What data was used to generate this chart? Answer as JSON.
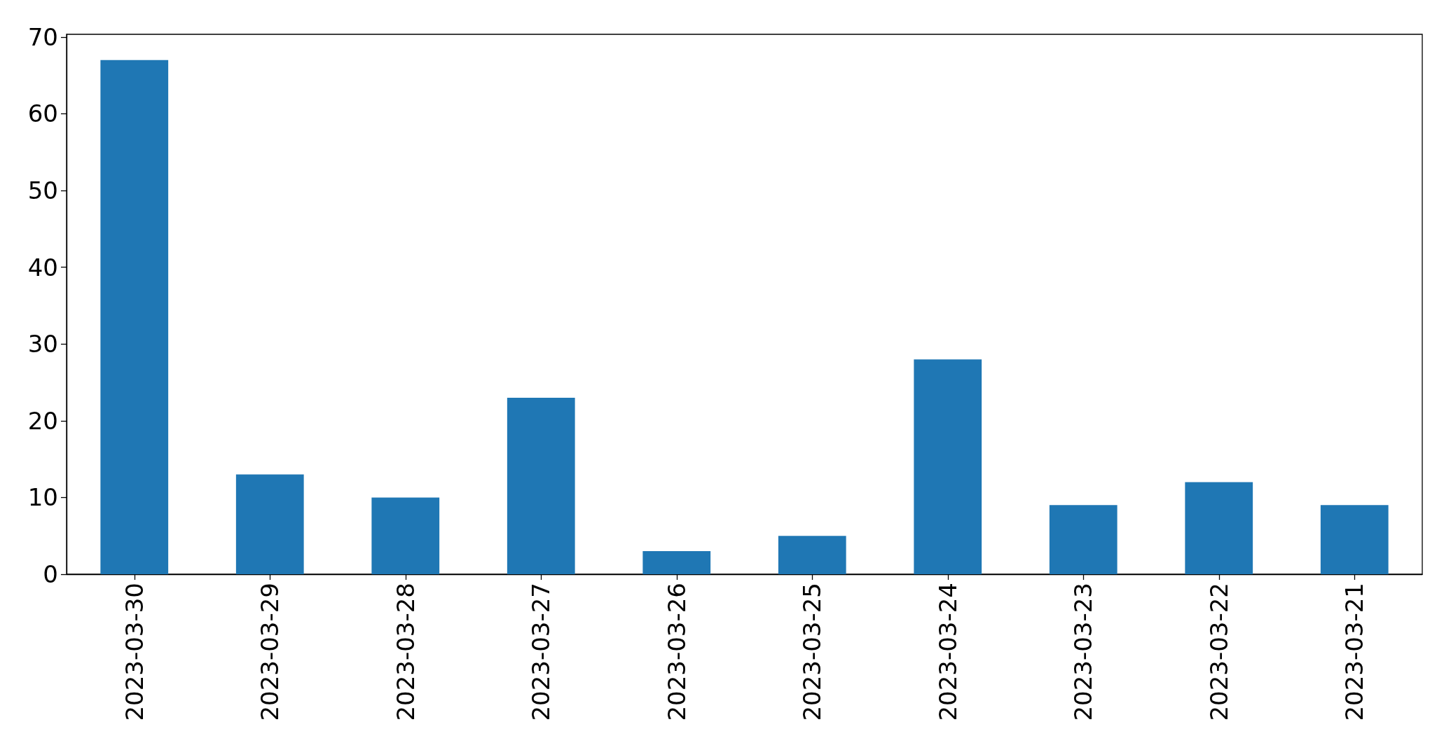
{
  "chart_data": {
    "type": "bar",
    "categories": [
      "2023-03-30",
      "2023-03-29",
      "2023-03-28",
      "2023-03-27",
      "2023-03-26",
      "2023-03-25",
      "2023-03-24",
      "2023-03-23",
      "2023-03-22",
      "2023-03-21"
    ],
    "values": [
      67,
      13,
      10,
      23,
      3,
      5,
      28,
      9,
      12,
      9
    ],
    "color": "#1f77b4",
    "ylim": [
      0,
      70.35
    ],
    "yticks": [
      0,
      10,
      20,
      30,
      40,
      50,
      60,
      70
    ],
    "grid": false
  }
}
